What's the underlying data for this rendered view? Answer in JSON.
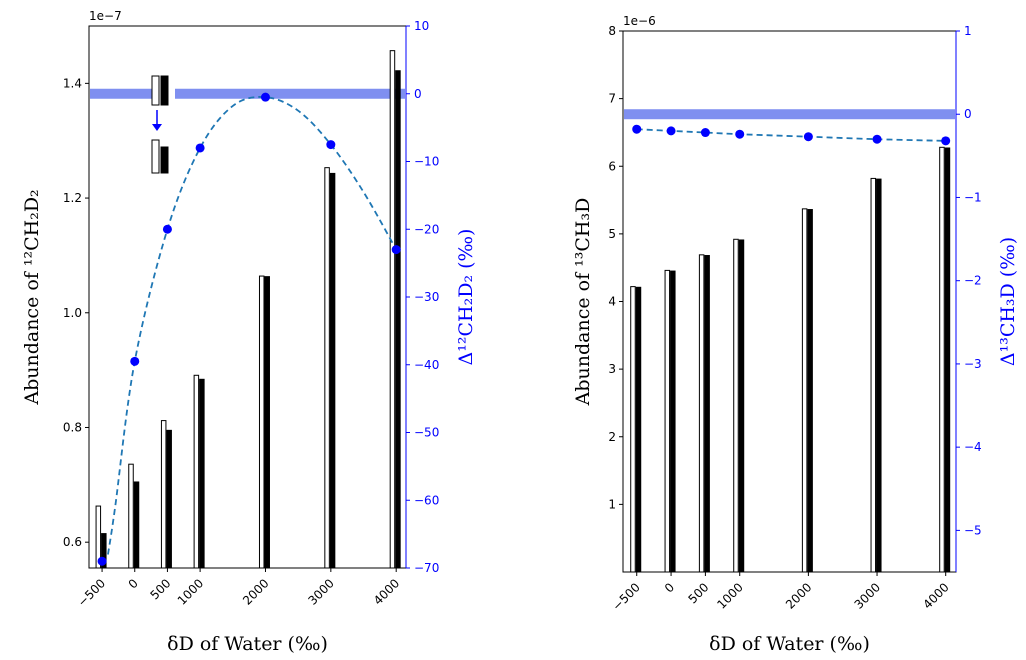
{
  "chart_data": [
    {
      "type": "bar",
      "x": [
        -500,
        0,
        500,
        1000,
        2000,
        3000,
        4000
      ],
      "x_ticks": [
        "−500",
        "0",
        "500",
        "1000",
        "2000",
        "3000",
        "4000"
      ],
      "xlabel": "δD of Water (‰)",
      "xlim": [
        -700,
        4150
      ],
      "ylabel": "Abundance of ¹²CH₂D₂",
      "y_offset_label": "1e−7",
      "ylim": [
        0.555,
        1.5
      ],
      "y_ticks": [
        0.6,
        0.8,
        1.0,
        1.2,
        1.4
      ],
      "y_tick_labels": [
        "0.6",
        "0.8",
        "1.0",
        "1.2",
        "1.4"
      ],
      "series": [
        {
          "style": "open",
          "values": [
            0.663,
            0.736,
            0.812,
            0.891,
            1.064,
            1.253,
            1.457
          ]
        },
        {
          "style": "filled",
          "values": [
            0.615,
            0.705,
            0.795,
            0.884,
            1.063,
            1.243,
            1.422
          ]
        }
      ],
      "secondary_axis": {
        "type": "line",
        "label": "Δ¹²CH₂D₂ (‰)",
        "ylim": [
          -70,
          10
        ],
        "ticks": [
          10,
          0,
          -10,
          -20,
          -30,
          -40,
          -50,
          -60,
          -70
        ],
        "tick_labels": [
          "10",
          "0",
          "−10",
          "−20",
          "−30",
          "−40",
          "−50",
          "−60",
          "−70"
        ],
        "values": [
          -69,
          -39.5,
          -20,
          -8,
          -0.5,
          -7.5,
          -23
        ],
        "curve_x": [
          -410,
          -300,
          0,
          500,
          1000,
          1500,
          2000,
          2500,
          3000,
          3500,
          4000
        ],
        "curve_y": [
          -68,
          -61,
          -39.5,
          -20,
          -8,
          -1.8,
          -0.5,
          -2.5,
          -7.5,
          -14.5,
          -23
        ],
        "zero_band": 0
      },
      "color_line": "#1f77b4",
      "color_marker": "#0000ff",
      "color_band": "#7f8ff0"
    },
    {
      "type": "bar",
      "x": [
        -500,
        0,
        500,
        1000,
        2000,
        3000,
        4000
      ],
      "x_ticks": [
        "−500",
        "0",
        "500",
        "1000",
        "2000",
        "3000",
        "4000"
      ],
      "xlabel": "δD of Water (‰)",
      "xlim": [
        -700,
        4150
      ],
      "ylabel": "Abundance of ¹³CH₃D",
      "y_offset_label": "1e−6",
      "ylim": [
        0,
        8
      ],
      "y_ticks": [
        1,
        2,
        3,
        4,
        5,
        6,
        7,
        8
      ],
      "y_tick_labels": [
        "1",
        "2",
        "3",
        "4",
        "5",
        "6",
        "7",
        "8"
      ],
      "series": [
        {
          "style": "open",
          "values": [
            4.22,
            4.46,
            4.69,
            4.92,
            5.37,
            5.82,
            6.28
          ]
        },
        {
          "style": "filled",
          "values": [
            4.21,
            4.45,
            4.68,
            4.91,
            5.36,
            5.81,
            6.27
          ]
        }
      ],
      "secondary_axis": {
        "type": "line",
        "label": "Δ¹³CH₃D (‰)",
        "ylim": [
          -5.5,
          1
        ],
        "ticks": [
          1,
          0,
          -1,
          -2,
          -3,
          -4,
          -5
        ],
        "tick_labels": [
          "1",
          "0",
          "−1",
          "−2",
          "−3",
          "−4",
          "−5"
        ],
        "values": [
          -0.18,
          -0.2,
          -0.22,
          -0.24,
          -0.27,
          -0.3,
          -0.32
        ],
        "zero_band": 0
      },
      "color_line": "#1f77b4",
      "color_marker": "#0000ff",
      "color_band": "#7f8ff0"
    }
  ]
}
